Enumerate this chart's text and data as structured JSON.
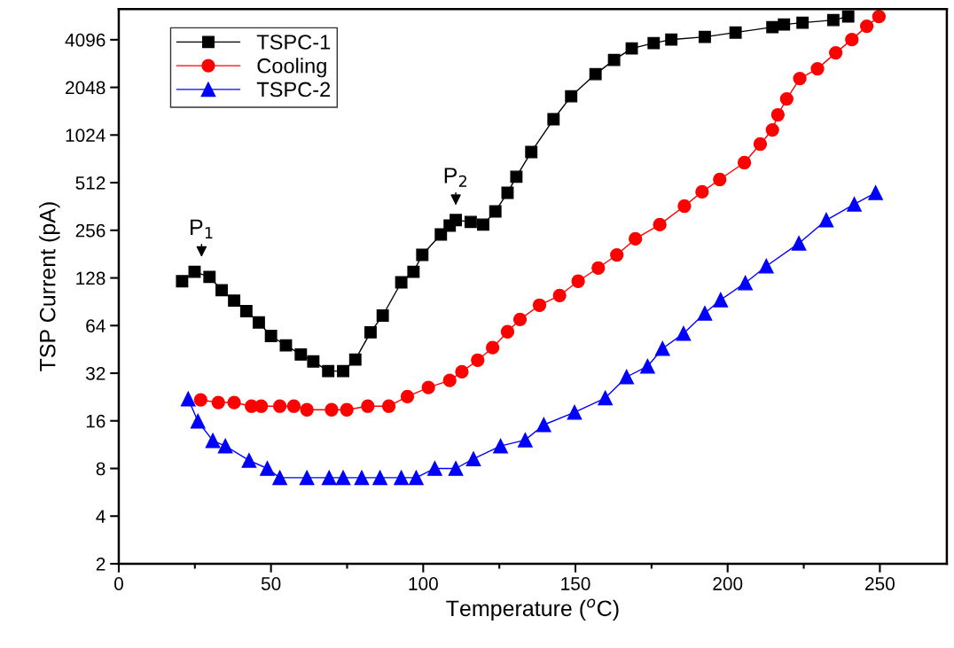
{
  "chart_data": {
    "type": "line",
    "xlabel": "Temperature ($^{o}$C)",
    "ylabel": "TSP Current (pA)",
    "log": "y",
    "xlim": [
      0,
      272
    ],
    "xticks": [
      0,
      {
        "value": 25,
        "label": null
      },
      50,
      {
        "value": 75,
        "label": null
      },
      100,
      {
        "value": 125,
        "label": null
      },
      150,
      {
        "value": 175,
        "label": null
      },
      200,
      {
        "value": 225,
        "label": null
      },
      250
    ],
    "ylim": [
      2,
      6400
    ],
    "yticks": [
      2,
      4,
      8,
      16,
      32,
      64,
      128,
      256,
      512,
      1024,
      2048,
      4096
    ],
    "grid": false,
    "legend": "top left",
    "line_style": "solid",
    "annotations": [
      {
        "text": "P$_{1}$",
        "x": 27.2,
        "y": 140
      },
      {
        "text": "P$_{2}$",
        "x": 110.7,
        "y": 297
      }
    ],
    "series": [
      {
        "name": "TSPC-1",
        "color": "#000000",
        "marker": "square",
        "x": [
          20.8,
          24.9,
          29.8,
          33.8,
          37.9,
          41.9,
          46.0,
          50.0,
          54.9,
          59.8,
          63.9,
          68.8,
          73.7,
          77.7,
          82.7,
          86.7,
          92.8,
          96.8,
          99.7,
          105.8,
          108.7,
          110.7,
          115.6,
          119.7,
          123.7,
          127.7,
          130.6,
          135.5,
          142.8,
          148.6,
          156.6,
          162.7,
          168.5,
          175.7,
          181.5,
          192.5,
          202.6,
          214.7,
          218.5,
          224.6,
          234.7,
          239.6
        ],
        "values": [
          122,
          140,
          130,
          107,
          92,
          79,
          67,
          55,
          48,
          42,
          38,
          33,
          33,
          39,
          58,
          74,
          120,
          140,
          179,
          241,
          274,
          297,
          289,
          278,
          337,
          442,
          558,
          800,
          1288,
          1800,
          2485,
          3053,
          3610,
          3900,
          4107,
          4268,
          4550,
          4918,
          5112,
          5245,
          5455,
          5740
        ]
      },
      {
        "name": "Cooling",
        "color": "#ff0000",
        "marker": "circle",
        "x": [
          26.9,
          32.7,
          37.9,
          43.6,
          46.8,
          52.9,
          57.5,
          61.8,
          69.9,
          74.9,
          81.8,
          88.7,
          94.8,
          101.7,
          108.7,
          112.7,
          117.9,
          122.8,
          127.7,
          131.8,
          138.2,
          144.8,
          150.9,
          157.5,
          163.6,
          169.7,
          177.7,
          185.8,
          191.6,
          197.4,
          205.5,
          210.7,
          214.7,
          216.5,
          219.4,
          223.7,
          229.5,
          235.5,
          240.8,
          245.7,
          249.7
        ],
        "values": [
          21.7,
          20.9,
          20.9,
          19.8,
          19.8,
          19.8,
          19.8,
          18.8,
          18.8,
          18.8,
          19.8,
          19.8,
          22.8,
          26.0,
          28.8,
          32.7,
          38.7,
          46.4,
          58.5,
          70.0,
          86.1,
          99.2,
          122,
          148,
          179,
          226,
          278,
          364,
          448,
          536,
          685,
          898,
          1103,
          1374,
          1732,
          2330,
          2684,
          3385,
          4107,
          4984,
          5740
        ]
      },
      {
        "name": "TSPC-2",
        "color": "#0000ff",
        "marker": "triangle",
        "x": [
          22.8,
          26.0,
          30.9,
          35.0,
          42.8,
          48.8,
          52.9,
          61.8,
          69.1,
          73.7,
          79.8,
          85.8,
          92.8,
          97.7,
          103.8,
          110.7,
          116.5,
          125.4,
          133.5,
          139.6,
          149.7,
          159.8,
          166.8,
          173.7,
          178.6,
          185.5,
          192.5,
          197.7,
          205.8,
          212.7,
          223.4,
          232.4,
          241.6,
          248.6
        ],
        "values": [
          22.0,
          15.9,
          12.0,
          11.1,
          9.0,
          8.0,
          7,
          7,
          7,
          7,
          7,
          7,
          7,
          7,
          8,
          8,
          9.2,
          11.1,
          12.1,
          15.1,
          18.1,
          22.3,
          30.3,
          35.4,
          45.8,
          57.0,
          76.6,
          93.0,
          119,
          152,
          212,
          297,
          374,
          442
        ]
      }
    ]
  }
}
